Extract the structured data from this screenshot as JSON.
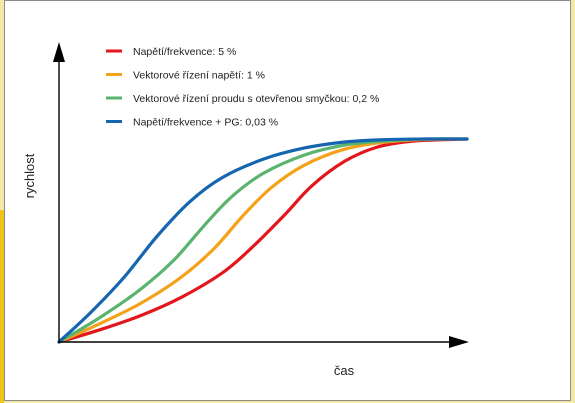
{
  "chart_data": {
    "type": "line",
    "title": "",
    "xlabel": "čas",
    "ylabel": "rychlost",
    "grid": false,
    "legend_position": "top-left",
    "x_ticks": "none",
    "y_ticks": "none",
    "xlim": [
      0,
      1
    ],
    "ylim": [
      0,
      1
    ],
    "series": [
      {
        "name": "Napětí/frekvence: 5 %",
        "color": "#e3161c",
        "x": [
          0,
          0.1,
          0.2,
          0.3,
          0.4,
          0.47,
          0.55,
          0.62,
          0.7,
          0.78,
          0.87,
          1.0
        ],
        "y": [
          0,
          0.06,
          0.13,
          0.22,
          0.34,
          0.46,
          0.62,
          0.77,
          0.89,
          0.96,
          0.99,
          1.0
        ]
      },
      {
        "name": "Vektorové řízení napětí: 1 %",
        "color": "#f5a11a",
        "x": [
          0,
          0.1,
          0.2,
          0.3,
          0.38,
          0.45,
          0.52,
          0.6,
          0.7,
          0.8,
          0.9,
          1.0
        ],
        "y": [
          0,
          0.09,
          0.19,
          0.32,
          0.46,
          0.62,
          0.76,
          0.87,
          0.95,
          0.985,
          0.998,
          1.0
        ]
      },
      {
        "name": "Vektorové řízení proudu s otevřenou smyčkou: 0,2 %",
        "color": "#5ab46e",
        "x": [
          0,
          0.1,
          0.2,
          0.28,
          0.35,
          0.42,
          0.5,
          0.6,
          0.7,
          0.8,
          0.9,
          1.0
        ],
        "y": [
          0,
          0.12,
          0.26,
          0.4,
          0.56,
          0.71,
          0.83,
          0.92,
          0.97,
          0.99,
          1.0,
          1.0
        ]
      },
      {
        "name": "Napětí/frekvence + PG: 0,03 %",
        "color": "#1565b0",
        "x": [
          0,
          0.08,
          0.16,
          0.24,
          0.32,
          0.4,
          0.5,
          0.6,
          0.7,
          0.8,
          0.9,
          1.0
        ],
        "y": [
          0,
          0.15,
          0.32,
          0.52,
          0.69,
          0.81,
          0.9,
          0.955,
          0.985,
          0.997,
          1.0,
          1.0
        ]
      }
    ]
  }
}
